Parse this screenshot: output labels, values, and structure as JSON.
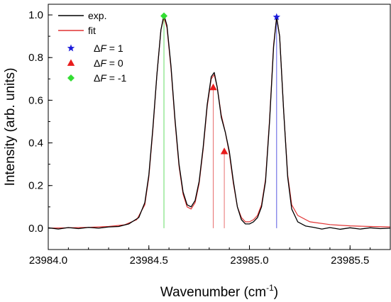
{
  "chart_data": {
    "type": "line",
    "xlabel": "Wavenumber (cm",
    "xlabel_sup": "-1",
    "xlabel_close": ")",
    "ylabel": "Intensity (arb. units)",
    "xlim": [
      23984.0,
      23985.7
    ],
    "ylim": [
      -0.1,
      1.05
    ],
    "x_ticks": [
      23984.0,
      23984.5,
      23985.0,
      23985.5
    ],
    "x_tick_labels": [
      "23984.0",
      "23984.5",
      "23985.0",
      "23985.5"
    ],
    "y_ticks": [
      0.0,
      0.2,
      0.4,
      0.6,
      0.8,
      1.0
    ],
    "y_tick_labels": [
      "0.0",
      "0.2",
      "0.4",
      "0.6",
      "0.8",
      "1.0"
    ],
    "grid": false,
    "legend_position": "top-left",
    "series": [
      {
        "name": "exp.",
        "color": "#000000",
        "points": [
          [
            23984.0,
            0.002
          ],
          [
            23984.05,
            -0.004
          ],
          [
            23984.1,
            0.003
          ],
          [
            23984.15,
            -0.002
          ],
          [
            23984.2,
            0.004
          ],
          [
            23984.25,
            0.0
          ],
          [
            23984.3,
            0.006
          ],
          [
            23984.35,
            0.008
          ],
          [
            23984.4,
            0.02
          ],
          [
            23984.45,
            0.05
          ],
          [
            23984.48,
            0.12
          ],
          [
            23984.5,
            0.25
          ],
          [
            23984.52,
            0.47
          ],
          [
            23984.54,
            0.72
          ],
          [
            23984.56,
            0.93
          ],
          [
            23984.575,
            1.0
          ],
          [
            23984.59,
            0.95
          ],
          [
            23984.61,
            0.76
          ],
          [
            23984.63,
            0.51
          ],
          [
            23984.65,
            0.3
          ],
          [
            23984.67,
            0.17
          ],
          [
            23984.69,
            0.11
          ],
          [
            23984.71,
            0.1
          ],
          [
            23984.73,
            0.13
          ],
          [
            23984.75,
            0.22
          ],
          [
            23984.77,
            0.38
          ],
          [
            23984.79,
            0.58
          ],
          [
            23984.81,
            0.71
          ],
          [
            23984.825,
            0.73
          ],
          [
            23984.84,
            0.66
          ],
          [
            23984.86,
            0.52
          ],
          [
            23984.88,
            0.45
          ],
          [
            23984.9,
            0.36
          ],
          [
            23984.92,
            0.22
          ],
          [
            23984.94,
            0.1
          ],
          [
            23984.96,
            0.04
          ],
          [
            23984.98,
            0.02
          ],
          [
            23985.0,
            0.02
          ],
          [
            23985.02,
            0.03
          ],
          [
            23985.04,
            0.05
          ],
          [
            23985.06,
            0.1
          ],
          [
            23985.08,
            0.22
          ],
          [
            23985.1,
            0.5
          ],
          [
            23985.12,
            0.85
          ],
          [
            23985.135,
            0.99
          ],
          [
            23985.15,
            0.9
          ],
          [
            23985.17,
            0.55
          ],
          [
            23985.19,
            0.24
          ],
          [
            23985.21,
            0.09
          ],
          [
            23985.24,
            0.03
          ],
          [
            23985.28,
            0.01
          ],
          [
            23985.32,
            0.004
          ],
          [
            23985.36,
            -0.004
          ],
          [
            23985.4,
            0.003
          ],
          [
            23985.45,
            -0.005
          ],
          [
            23985.5,
            0.002
          ],
          [
            23985.55,
            -0.004
          ],
          [
            23985.6,
            0.002
          ],
          [
            23985.65,
            -0.002
          ],
          [
            23985.7,
            0.0
          ]
        ]
      },
      {
        "name": "fit",
        "color": "#e03030",
        "points": [
          [
            23984.0,
            0.0
          ],
          [
            23984.1,
            0.002
          ],
          [
            23984.2,
            0.004
          ],
          [
            23984.3,
            0.008
          ],
          [
            23984.38,
            0.016
          ],
          [
            23984.44,
            0.04
          ],
          [
            23984.48,
            0.11
          ],
          [
            23984.5,
            0.24
          ],
          [
            23984.52,
            0.46
          ],
          [
            23984.54,
            0.72
          ],
          [
            23984.56,
            0.93
          ],
          [
            23984.575,
            0.99
          ],
          [
            23984.59,
            0.94
          ],
          [
            23984.61,
            0.75
          ],
          [
            23984.63,
            0.5
          ],
          [
            23984.65,
            0.29
          ],
          [
            23984.67,
            0.16
          ],
          [
            23984.69,
            0.1
          ],
          [
            23984.71,
            0.09
          ],
          [
            23984.73,
            0.12
          ],
          [
            23984.75,
            0.21
          ],
          [
            23984.77,
            0.37
          ],
          [
            23984.79,
            0.57
          ],
          [
            23984.81,
            0.7
          ],
          [
            23984.825,
            0.72
          ],
          [
            23984.84,
            0.66
          ],
          [
            23984.86,
            0.53
          ],
          [
            23984.88,
            0.45
          ],
          [
            23984.9,
            0.35
          ],
          [
            23984.92,
            0.21
          ],
          [
            23984.94,
            0.1
          ],
          [
            23984.96,
            0.05
          ],
          [
            23984.98,
            0.03
          ],
          [
            23985.0,
            0.03
          ],
          [
            23985.02,
            0.04
          ],
          [
            23985.04,
            0.06
          ],
          [
            23985.06,
            0.11
          ],
          [
            23985.08,
            0.23
          ],
          [
            23985.1,
            0.51
          ],
          [
            23985.12,
            0.86
          ],
          [
            23985.135,
            0.99
          ],
          [
            23985.15,
            0.9
          ],
          [
            23985.17,
            0.55
          ],
          [
            23985.19,
            0.25
          ],
          [
            23985.21,
            0.11
          ],
          [
            23985.24,
            0.06
          ],
          [
            23985.3,
            0.03
          ],
          [
            23985.4,
            0.017
          ],
          [
            23985.5,
            0.011
          ],
          [
            23985.6,
            0.008
          ],
          [
            23985.7,
            0.006
          ]
        ]
      }
    ],
    "transitions": [
      {
        "name": "ΔF = 1",
        "label_prefix": "Δ",
        "label_var": "F",
        "label_suffix": " = 1",
        "marker": "star",
        "color": "#1a1adb",
        "line_color": "#5a5ae0",
        "lines": [
          [
            23985.135,
            0.99
          ]
        ]
      },
      {
        "name": "ΔF = 0",
        "label_prefix": "Δ",
        "label_var": "F",
        "label_suffix": " = 0",
        "marker": "triangle",
        "color": "#e81c1c",
        "line_color": "#e87070",
        "lines": [
          [
            23984.82,
            0.66
          ],
          [
            23984.875,
            0.36
          ]
        ]
      },
      {
        "name": "ΔF = -1",
        "label_prefix": "Δ",
        "label_var": "F",
        "label_suffix": " = -1",
        "marker": "diamond",
        "color": "#33dd33",
        "line_color": "#66dd66",
        "lines": [
          [
            23984.575,
            0.995
          ]
        ]
      }
    ]
  }
}
